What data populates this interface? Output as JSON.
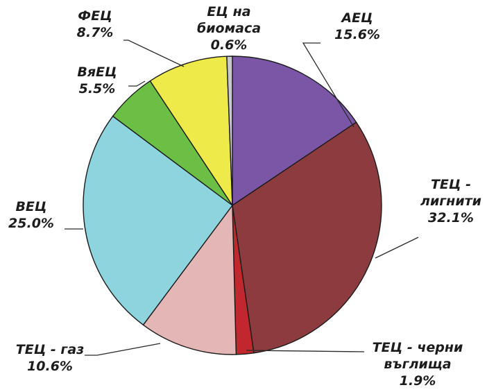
{
  "chart_data": {
    "type": "pie",
    "title": "",
    "slices": [
      {
        "name": "АЕЦ",
        "label_lines": [
          "АЕЦ",
          "15.6%"
        ],
        "value": 15.6,
        "color": "#7b56a6"
      },
      {
        "name": "ТЕЦ - лигнити",
        "label_lines": [
          "ТЕЦ -",
          "лигнити",
          "32.1%"
        ],
        "value": 32.1,
        "color": "#8c3c3e"
      },
      {
        "name": "ТЕЦ - черни въглища",
        "label_lines": [
          "ТЕЦ  - черни",
          "въглища",
          "1.9%"
        ],
        "value": 1.9,
        "color": "#c0282d"
      },
      {
        "name": "ТЕЦ - газ",
        "label_lines": [
          "ТЕЦ - газ",
          "10.6%"
        ],
        "value": 10.6,
        "color": "#e4b6b5"
      },
      {
        "name": "ВЕЦ",
        "label_lines": [
          "ВЕЦ",
          "25.0%"
        ],
        "value": 25.0,
        "color": "#8dd4de"
      },
      {
        "name": "ВяЕЦ",
        "label_lines": [
          "ВяЕЦ",
          "5.5%"
        ],
        "value": 5.5,
        "color": "#6cbf45"
      },
      {
        "name": "ФЕЦ",
        "label_lines": [
          "ФЕЦ",
          "8.7%"
        ],
        "value": 8.7,
        "color": "#eeea4a"
      },
      {
        "name": "ЕЦ на биомаса",
        "label_lines": [
          "ЕЦ на",
          "биомаса",
          "0.6%"
        ],
        "value": 0.6,
        "color": "#c9c9cc"
      }
    ],
    "start_direction": "top",
    "direction": "clockwise",
    "legend": "none",
    "labels": "outside with leader lines"
  }
}
